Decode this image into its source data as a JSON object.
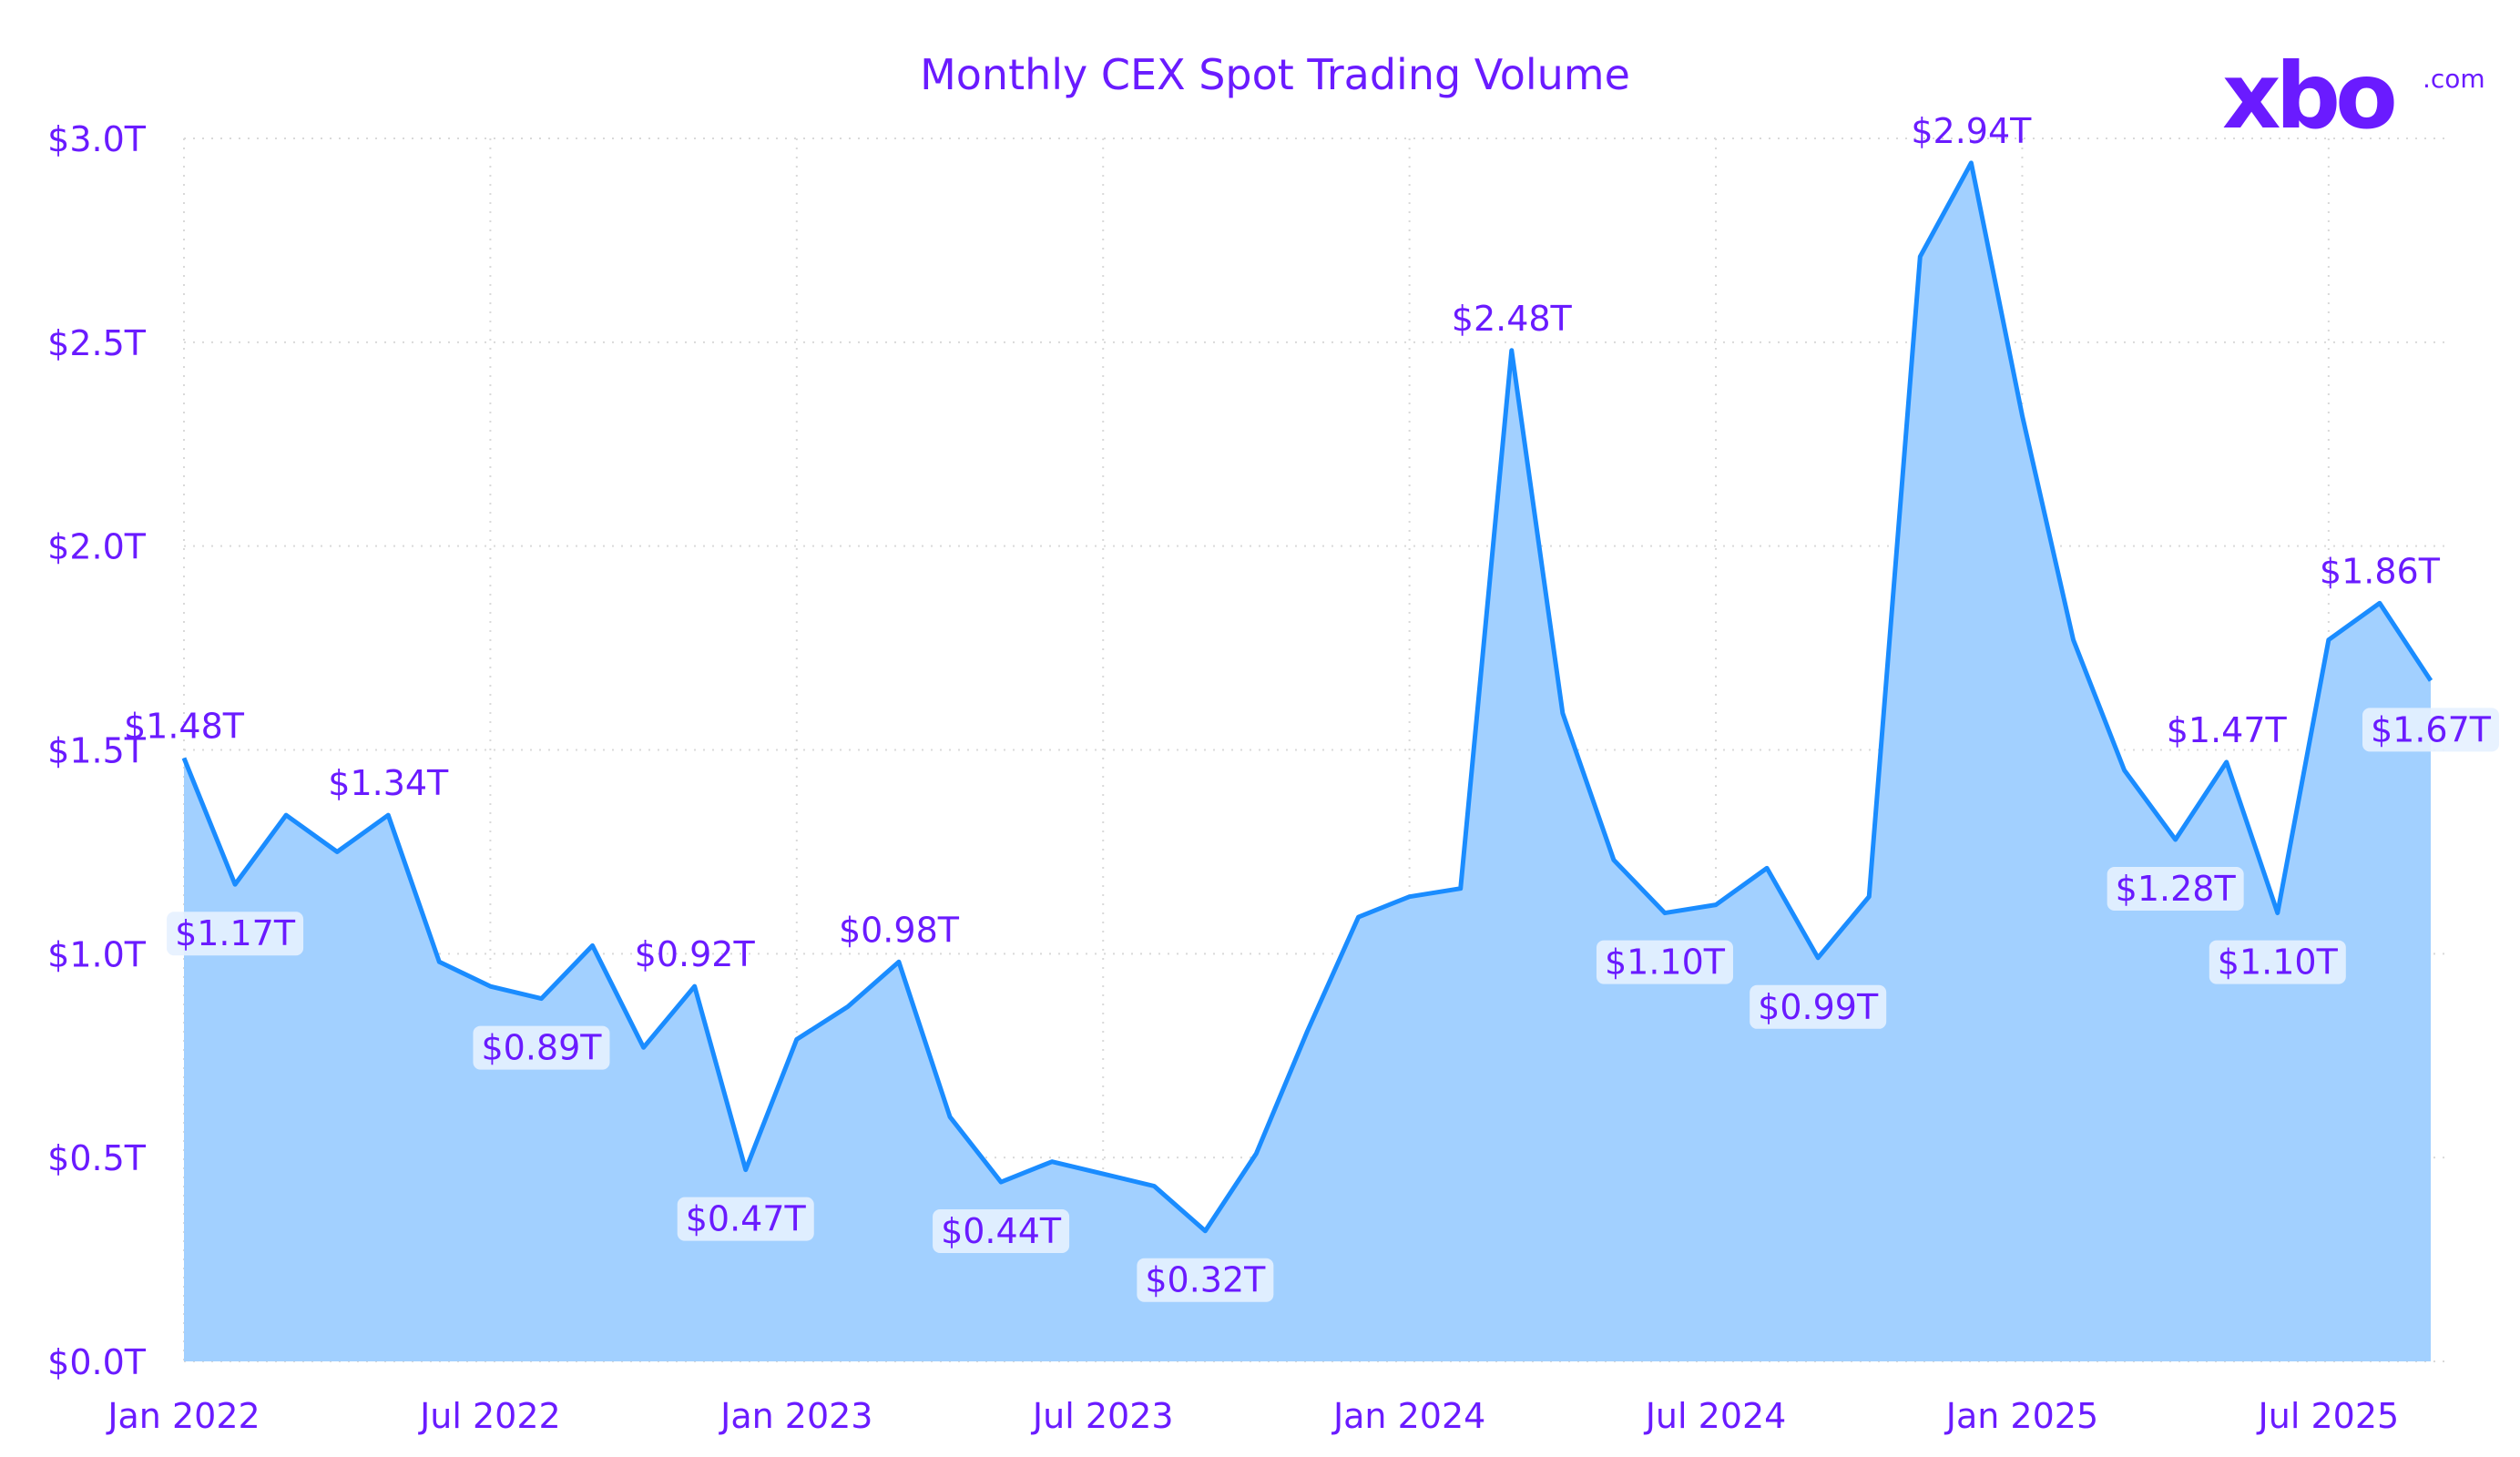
{
  "brand": {
    "logo_text": "xbo",
    "logo_suffix": ".com",
    "color": "#6a1bff"
  },
  "colors": {
    "text": "#6a1bff",
    "line": "#1a8cff",
    "fill": "#a2d0ff",
    "grid": "#d9d9d9",
    "label_box": "#e6f1ff"
  },
  "chart_data": {
    "type": "area",
    "title": "Monthly CEX Spot Trading Volume",
    "xlabel": "",
    "ylabel": "",
    "ylim": [
      0,
      3.0
    ],
    "grid": true,
    "unit": "trillion USD",
    "x": [
      "Jan 2022",
      "Feb 2022",
      "Mar 2022",
      "Apr 2022",
      "May 2022",
      "Jun 2022",
      "Jul 2022",
      "Aug 2022",
      "Sep 2022",
      "Oct 2022",
      "Nov 2022",
      "Dec 2022",
      "Jan 2023",
      "Feb 2023",
      "Mar 2023",
      "Apr 2023",
      "May 2023",
      "Jun 2023",
      "Jul 2023",
      "Aug 2023",
      "Sep 2023",
      "Oct 2023",
      "Nov 2023",
      "Dec 2023",
      "Jan 2024",
      "Feb 2024",
      "Mar 2024",
      "Apr 2024",
      "May 2024",
      "Jun 2024",
      "Jul 2024",
      "Aug 2024",
      "Sep 2024",
      "Oct 2024",
      "Nov 2024",
      "Dec 2024",
      "Jan 2025",
      "Feb 2025",
      "Mar 2025",
      "Apr 2025",
      "May 2025",
      "Jun 2025",
      "Jul 2025",
      "Aug 2025",
      "Sep 2025"
    ],
    "values": [
      1.48,
      1.17,
      1.34,
      1.25,
      1.34,
      0.98,
      0.92,
      0.89,
      1.02,
      0.77,
      0.92,
      0.47,
      0.79,
      0.87,
      0.98,
      0.6,
      0.44,
      0.49,
      0.46,
      0.43,
      0.32,
      0.51,
      0.81,
      1.09,
      1.14,
      1.16,
      2.48,
      1.59,
      1.23,
      1.1,
      1.12,
      1.21,
      0.99,
      1.14,
      2.71,
      2.94,
      2.32,
      1.77,
      1.45,
      1.28,
      1.47,
      1.1,
      1.77,
      1.86,
      1.67
    ],
    "y_ticks": [
      {
        "value": 0,
        "label": "$0.0T"
      },
      {
        "value": 0.5,
        "label": "$0.5T"
      },
      {
        "value": 1.0,
        "label": "$1.0T"
      },
      {
        "value": 1.5,
        "label": "$1.5T"
      },
      {
        "value": 2.0,
        "label": "$2.0T"
      },
      {
        "value": 2.5,
        "label": "$2.5T"
      },
      {
        "value": 3.0,
        "label": "$3.0T"
      }
    ],
    "x_ticks": [
      {
        "index": 0,
        "label": "Jan 2022"
      },
      {
        "index": 6,
        "label": "Jul 2022"
      },
      {
        "index": 12,
        "label": "Jan 2023"
      },
      {
        "index": 18,
        "label": "Jul 2023"
      },
      {
        "index": 24,
        "label": "Jan 2024"
      },
      {
        "index": 30,
        "label": "Jul 2024"
      },
      {
        "index": 36,
        "label": "Jan 2025"
      },
      {
        "index": 42,
        "label": "Jul 2025"
      }
    ],
    "data_labels": [
      {
        "index": 0,
        "text": "$1.48T",
        "placement": "above"
      },
      {
        "index": 1,
        "text": "$1.17T",
        "placement": "below"
      },
      {
        "index": 4,
        "text": "$1.34T",
        "placement": "above"
      },
      {
        "index": 7,
        "text": "$0.89T",
        "placement": "below"
      },
      {
        "index": 10,
        "text": "$0.92T",
        "placement": "above"
      },
      {
        "index": 11,
        "text": "$0.47T",
        "placement": "below"
      },
      {
        "index": 14,
        "text": "$0.98T",
        "placement": "above"
      },
      {
        "index": 16,
        "text": "$0.44T",
        "placement": "below"
      },
      {
        "index": 20,
        "text": "$0.32T",
        "placement": "below"
      },
      {
        "index": 26,
        "text": "$2.48T",
        "placement": "above"
      },
      {
        "index": 29,
        "text": "$1.10T",
        "placement": "below"
      },
      {
        "index": 32,
        "text": "$0.99T",
        "placement": "below"
      },
      {
        "index": 35,
        "text": "$2.94T",
        "placement": "above"
      },
      {
        "index": 39,
        "text": "$1.28T",
        "placement": "below"
      },
      {
        "index": 40,
        "text": "$1.47T",
        "placement": "above"
      },
      {
        "index": 41,
        "text": "$1.10T",
        "placement": "below"
      },
      {
        "index": 43,
        "text": "$1.86T",
        "placement": "above"
      },
      {
        "index": 44,
        "text": "$1.67T",
        "placement": "below"
      }
    ]
  }
}
